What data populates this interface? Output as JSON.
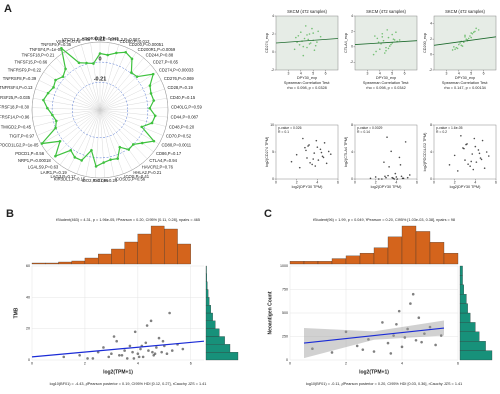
{
  "chart_data": [
    {
      "type": "radar",
      "panel": "A",
      "categories": [
        "ADORA2A,P=0.047",
        "BTNL2,P=0.067",
        "CD160,P=0.012",
        "CD200,P=0.00051",
        "CD200R1,P=0.0059",
        "CD244,P=0.88",
        "CD27,P=0.65",
        "CD274,P=0.00033",
        "CD276,P=0.069",
        "CD28,P=0.19",
        "CD40,P=0.15",
        "CD40LG,P=0.59",
        "CD44,P=0.087",
        "CD48,P=0.20",
        "CD70,P=0.52",
        "CD80,P=0.0011",
        "CD86,P=0.17",
        "CTLA4,P=0.94",
        "HAVCR2,P=0.76",
        "HHLA2,P=0.21",
        "ICOS,P=0.41",
        "ICOSLG,P=0.56",
        "IDO1,P=0.24",
        "IDO2,P=0.056",
        "KIR3DL1,P=0.15",
        "LAG3,P=0.17",
        "LAIR1,P=0.19",
        "LGALS9,P=0.63",
        "NRP1,P=0.00018",
        "PDCD1,P=0.56",
        "PDCD1LG2,P=1e-05",
        "TIGIT,P=0.97",
        "TMIGD2,P=0.45",
        "TNFRSF14,P=0.96",
        "TNFRSF18,P=0.30",
        "TNFRSF25,P=0.035",
        "TNFRSF4,P=0.13",
        "TNFRSF8,P=0.39",
        "TNFRSF9,P=0.22",
        "TNFSF15,P=0.66",
        "TNFSF18,P=0.21",
        "TNFSF4,P=1e-08",
        "TNFSF9,P=0.35",
        "VSIR,P=0.78",
        "VTCN1,P=0.88"
      ],
      "values": [
        0.09,
        0.08,
        0.12,
        0.16,
        0.13,
        0.01,
        0.02,
        0.17,
        0.08,
        0.06,
        0.07,
        0.02,
        0.08,
        0.06,
        -0.03,
        0.15,
        0.06,
        0.0,
        0.01,
        -0.06,
        0.04,
        0.03,
        0.05,
        0.09,
        -0.07,
        0.06,
        0.06,
        0.02,
        0.17,
        0.03,
        0.2,
        0.0,
        -0.03,
        0.0,
        0.05,
        0.1,
        0.07,
        0.04,
        0.06,
        0.02,
        0.06,
        0.26,
        0.04,
        0.01,
        -0.01
      ],
      "color": "#3fc23f",
      "rlim": [
        -0.5,
        0.21
      ],
      "rticks": [
        -0.21,
        0,
        0.21
      ]
    },
    {
      "type": "scatter",
      "title": "SKCM (472 samples)",
      "x_label": "DPY30_exp",
      "y_label": "CD274_exp",
      "notes": [
        "Spearman Correlation Test:",
        "rho = 0.098, p = 0.0328"
      ],
      "x": [
        4.1,
        4.5,
        3.8,
        5.0,
        4.7,
        4.3,
        5.3,
        3.5,
        4.9,
        4.2,
        5.6,
        4.0,
        4.6,
        3.9,
        5.1,
        4.4,
        4.8,
        3.6,
        5.4,
        4.5,
        4.2,
        5.0,
        4.7,
        3.7,
        5.2
      ],
      "y": [
        1.2,
        0.5,
        1.8,
        2.1,
        0.9,
        1.5,
        1.1,
        0.3,
        2.6,
        -0.4,
        1.7,
        2.2,
        1.4,
        0.8,
        0.2,
        2.9,
        1.0,
        1.6,
        2.3,
        1.9,
        0.6,
        1.3,
        2.0,
        1.1,
        0.7
      ],
      "xlim": [
        2,
        7
      ],
      "xticks": [
        3,
        4,
        5,
        6
      ],
      "ylim": [
        -2,
        4
      ],
      "yticks": [
        -2,
        0,
        2,
        4
      ],
      "color": "#4fb24f",
      "background": "#e6ece6",
      "fit": {
        "x": [
          2,
          7
        ],
        "y": [
          1.0,
          1.5
        ],
        "color": "#1e6b2e"
      }
    },
    {
      "type": "scatter",
      "title": "SKCM (472 samples)",
      "x_label": "DPY30_exp",
      "y_label": "CTLA4_exp",
      "notes": [
        "Spearman Correlation Test:",
        "rho = 0.098, p = 0.0342"
      ],
      "x": [
        4.1,
        4.5,
        3.8,
        5.0,
        4.7,
        4.3,
        5.3,
        3.5,
        4.9,
        4.2,
        5.6,
        4.0,
        4.6,
        3.9,
        5.1,
        4.4,
        4.8,
        3.6,
        5.4,
        4.5,
        4.2,
        5.0,
        4.7,
        3.7,
        5.2
      ],
      "y": [
        0.4,
        -0.5,
        1.1,
        1.6,
        -0.2,
        0.8,
        1.9,
        -1.0,
        0.3,
        1.3,
        0.9,
        -0.3,
        2.2,
        0.6,
        1.0,
        -0.8,
        0.1,
        1.4,
        0.7,
        -0.1,
        1.7,
        0.5,
        1.2,
        -0.6,
        0.9
      ],
      "xlim": [
        2,
        7
      ],
      "xticks": [
        3,
        4,
        5,
        6
      ],
      "ylim": [
        -3,
        4
      ],
      "yticks": [
        -2,
        0,
        2,
        4
      ],
      "color": "#4fb24f",
      "background": "#e6ece6",
      "fit": {
        "x": [
          2,
          7
        ],
        "y": [
          0.3,
          0.8
        ],
        "color": "#1e6b2e"
      }
    },
    {
      "type": "scatter",
      "title": "SKCM (472 samples)",
      "x_label": "DPY30_exp",
      "y_label": "CD200_exp",
      "notes": [
        "Spearman Correlation Test:",
        "rho = 0.147, p = 0.00134"
      ],
      "x": [
        4.1,
        4.5,
        3.8,
        5.0,
        4.7,
        4.3,
        5.3,
        3.5,
        4.9,
        4.2,
        5.6,
        4.0,
        4.6,
        3.9,
        5.1,
        4.4,
        4.8,
        3.6,
        5.4,
        4.5,
        4.2,
        5.0,
        4.7,
        3.7,
        5.2
      ],
      "y": [
        1.5,
        2.3,
        0.9,
        2.8,
        1.9,
        1.1,
        3.0,
        0.6,
        2.4,
        1.7,
        3.2,
        1.3,
        2.0,
        0.8,
        2.7,
        1.6,
        2.1,
        1.0,
        3.4,
        2.5,
        1.2,
        2.2,
        1.8,
        0.7,
        2.9
      ],
      "xlim": [
        2,
        7
      ],
      "xticks": [
        3,
        4,
        5,
        6
      ],
      "ylim": [
        -2,
        5
      ],
      "yticks": [
        -2,
        0,
        2,
        4
      ],
      "color": "#4fb24f",
      "background": "#e6ece6",
      "fit": {
        "x": [
          2,
          7
        ],
        "y": [
          1.2,
          2.3
        ],
        "color": "#1e6b2e"
      }
    },
    {
      "type": "scatter",
      "x_label": "log2(DPY30 TPM)",
      "y_label": "log2(CD274 TPM)",
      "annotations": [
        "p-value = 0.026",
        "R = 0.1"
      ],
      "x": [
        1.5,
        2.0,
        2.3,
        2.8,
        3.0,
        3.2,
        3.5,
        3.7,
        3.9,
        4.1,
        4.3,
        4.5,
        4.7,
        4.9,
        5.1,
        5.3,
        2.6,
        3.3,
        4.0,
        4.6,
        3.1,
        3.8,
        4.4,
        2.9,
        3.6
      ],
      "y": [
        3.2,
        4.5,
        2.1,
        5.8,
        3.9,
        6.3,
        2.7,
        4.8,
        7.1,
        3.5,
        5.5,
        4.2,
        6.7,
        2.9,
        5.1,
        4.6,
        7.5,
        3.0,
        5.9,
        4.0,
        6.1,
        2.4,
        4.9,
        5.3,
        3.7
      ],
      "xlim": [
        0,
        6
      ],
      "xticks": [
        0,
        2,
        4,
        6
      ],
      "ylim": [
        0,
        10
      ],
      "yticks": [
        0,
        5,
        10
      ],
      "color": "#111111",
      "background": "#ffffff"
    },
    {
      "type": "scatter",
      "x_label": "log2(DPY30 TPM)",
      "y_label": "log2(CTLA4 TPM)",
      "annotations": [
        "p-value = 0.0029",
        "R = 0.14"
      ],
      "x": [
        1.5,
        2.0,
        2.3,
        2.8,
        3.0,
        3.2,
        3.5,
        3.7,
        3.9,
        4.1,
        4.3,
        4.5,
        4.7,
        4.9,
        5.1,
        5.3,
        2.6,
        3.3,
        4.0,
        4.6,
        3.1,
        3.8,
        4.4,
        2.9,
        3.6
      ],
      "y": [
        0.1,
        0.3,
        0.0,
        2.5,
        0.2,
        0.5,
        4.1,
        0.1,
        0.8,
        0.0,
        3.2,
        0.4,
        0.1,
        5.5,
        0.2,
        0.6,
        0.0,
        1.8,
        0.3,
        0.1,
        6.2,
        0.0,
        2.1,
        0.4,
        0.2
      ],
      "xlim": [
        0,
        6
      ],
      "xticks": [
        0,
        2,
        4,
        6
      ],
      "ylim": [
        0,
        8
      ],
      "yticks": [
        0,
        4,
        8
      ],
      "color": "#111111",
      "background": "#ffffff"
    },
    {
      "type": "scatter",
      "x_label": "log2(DPY30 TPM)",
      "y_label": "log2(PDCD1LG2 TPM)",
      "annotations": [
        "p-value = 1.6e-05",
        "R = 0.2"
      ],
      "x": [
        1.5,
        2.0,
        2.3,
        2.8,
        3.0,
        3.2,
        3.5,
        3.7,
        3.9,
        4.1,
        4.3,
        4.5,
        4.7,
        4.9,
        5.1,
        5.3,
        2.6,
        3.3,
        4.0,
        4.6,
        3.1,
        3.8,
        4.4,
        2.9,
        3.6
      ],
      "y": [
        2.1,
        3.5,
        1.2,
        4.6,
        2.8,
        5.2,
        1.9,
        3.7,
        6.0,
        2.5,
        4.3,
        3.1,
        5.7,
        1.6,
        4.0,
        3.4,
        6.4,
        2.2,
        4.8,
        2.9,
        5.1,
        1.4,
        3.8,
        4.5,
        2.6
      ],
      "xlim": [
        0,
        6
      ],
      "xticks": [
        0,
        2,
        4,
        6
      ],
      "ylim": [
        0,
        8
      ],
      "yticks": [
        0,
        4,
        8
      ],
      "color": "#111111",
      "background": "#ffffff"
    },
    {
      "type": "scatter",
      "panel": "B",
      "subtitle": "tStudent(463) = 4.31, p = 1.96e-05, r̂Pearson = 0.20, CI95% [0.11, 0.28], npairs = 465",
      "caption": "log10(BF01) = -4.43, ρ̂Pearson posterior = 0.19, CI95% HDI [0.12, 0.27], rCauchy JZS = 1.41",
      "x_label": "log2(TPM+1)",
      "y_label": "TMB",
      "x": [
        1.2,
        1.8,
        2.1,
        2.5,
        2.7,
        2.9,
        3.0,
        3.2,
        3.3,
        3.5,
        3.6,
        3.7,
        3.8,
        3.9,
        4.0,
        4.1,
        4.2,
        4.3,
        4.4,
        4.5,
        4.6,
        4.7,
        4.8,
        4.9,
        5.0,
        5.1,
        5.2,
        5.3,
        5.5,
        5.7,
        2.3,
        3.1,
        3.4,
        4.05,
        4.35,
        4.65,
        3.85,
        4.15,
        4.55,
        4.95
      ],
      "y": [
        2,
        3,
        1,
        5,
        8,
        2,
        4,
        12,
        3,
        6,
        1,
        9,
        5,
        18,
        4,
        7,
        2,
        11,
        6,
        25,
        3,
        8,
        14,
        5,
        9,
        4,
        30,
        6,
        10,
        7,
        1,
        15,
        3,
        2,
        22,
        4,
        1,
        9,
        5,
        12
      ],
      "xlim": [
        0,
        6.5
      ],
      "xticks": [
        0,
        2,
        4,
        6
      ],
      "ylim": [
        0,
        60
      ],
      "yticks": [
        0,
        20,
        40,
        60
      ],
      "grid": true,
      "color": "#555555",
      "background": "#ffffff",
      "fit": {
        "x": [
          0,
          6.5
        ],
        "y": [
          2,
          12
        ],
        "color": "#1a2bd6"
      },
      "x_hist": {
        "bins": [
          0,
          0.5,
          1,
          1.5,
          2,
          2.5,
          3,
          3.5,
          4,
          4.5,
          5,
          5.5,
          6
        ],
        "counts": [
          1,
          1,
          2,
          3,
          6,
          10,
          15,
          22,
          30,
          38,
          35,
          20
        ],
        "color": "#d4641c"
      },
      "y_hist": {
        "bins": [
          0,
          5,
          10,
          15,
          20,
          25,
          30,
          35,
          40,
          45,
          50,
          55,
          60
        ],
        "counts": [
          120,
          90,
          70,
          50,
          35,
          25,
          18,
          12,
          8,
          5,
          3,
          2
        ],
        "color": "#17917a"
      }
    },
    {
      "type": "scatter",
      "panel": "C",
      "subtitle": "tStudent(96) = 1.99, p = 0.049, r̂Pearson = 0.20, CI95% [1.03e-03, 0.38], npairs = 98",
      "caption": "log10(BF01) = -0.11, ρ̂Pearson posterior = 0.20, CI95% HDI [0.03, 0.36], rCauchy JZS = 1.41",
      "x_label": "log2(TPM+1)",
      "y_label": "Neoantigen Count",
      "x": [
        0.8,
        1.5,
        2.0,
        2.4,
        2.8,
        3.0,
        3.3,
        3.5,
        3.7,
        3.9,
        4.0,
        4.2,
        4.3,
        4.5,
        4.6,
        4.8,
        5.0,
        5.2,
        3.6,
        4.1,
        4.4,
        2.6,
        3.8,
        4.7,
        5.4
      ],
      "y": [
        120,
        80,
        300,
        150,
        220,
        90,
        400,
        180,
        260,
        520,
        140,
        330,
        600,
        210,
        450,
        280,
        350,
        160,
        70,
        240,
        700,
        110,
        380,
        190,
        260
      ],
      "xlim": [
        0,
        6
      ],
      "xticks": [
        0,
        2,
        4,
        6
      ],
      "ylim": [
        0,
        1000
      ],
      "yticks": [
        0,
        250,
        500,
        750,
        1000
      ],
      "grid": true,
      "color": "#555555",
      "background": "#ffffff",
      "fit": {
        "x": [
          0.5,
          3,
          5.5
        ],
        "y": [
          180,
          260,
          340
        ],
        "low": [
          20,
          215,
          260
        ],
        "high": [
          340,
          305,
          420
        ],
        "color": "#1a2bd6"
      },
      "x_hist": {
        "bins": [
          0,
          0.5,
          1,
          1.5,
          2,
          2.5,
          3,
          3.5,
          4,
          4.5,
          5,
          5.5,
          6
        ],
        "counts": [
          1,
          1,
          1,
          2,
          3,
          4,
          6,
          10,
          14,
          12,
          8,
          4
        ],
        "color": "#d4641c"
      },
      "y_hist": {
        "bins": [
          0,
          100,
          200,
          300,
          400,
          500,
          600,
          700,
          800,
          900,
          1000
        ],
        "counts": [
          25,
          20,
          15,
          12,
          8,
          6,
          5,
          3,
          2,
          2
        ],
        "color": "#17917a"
      }
    }
  ]
}
